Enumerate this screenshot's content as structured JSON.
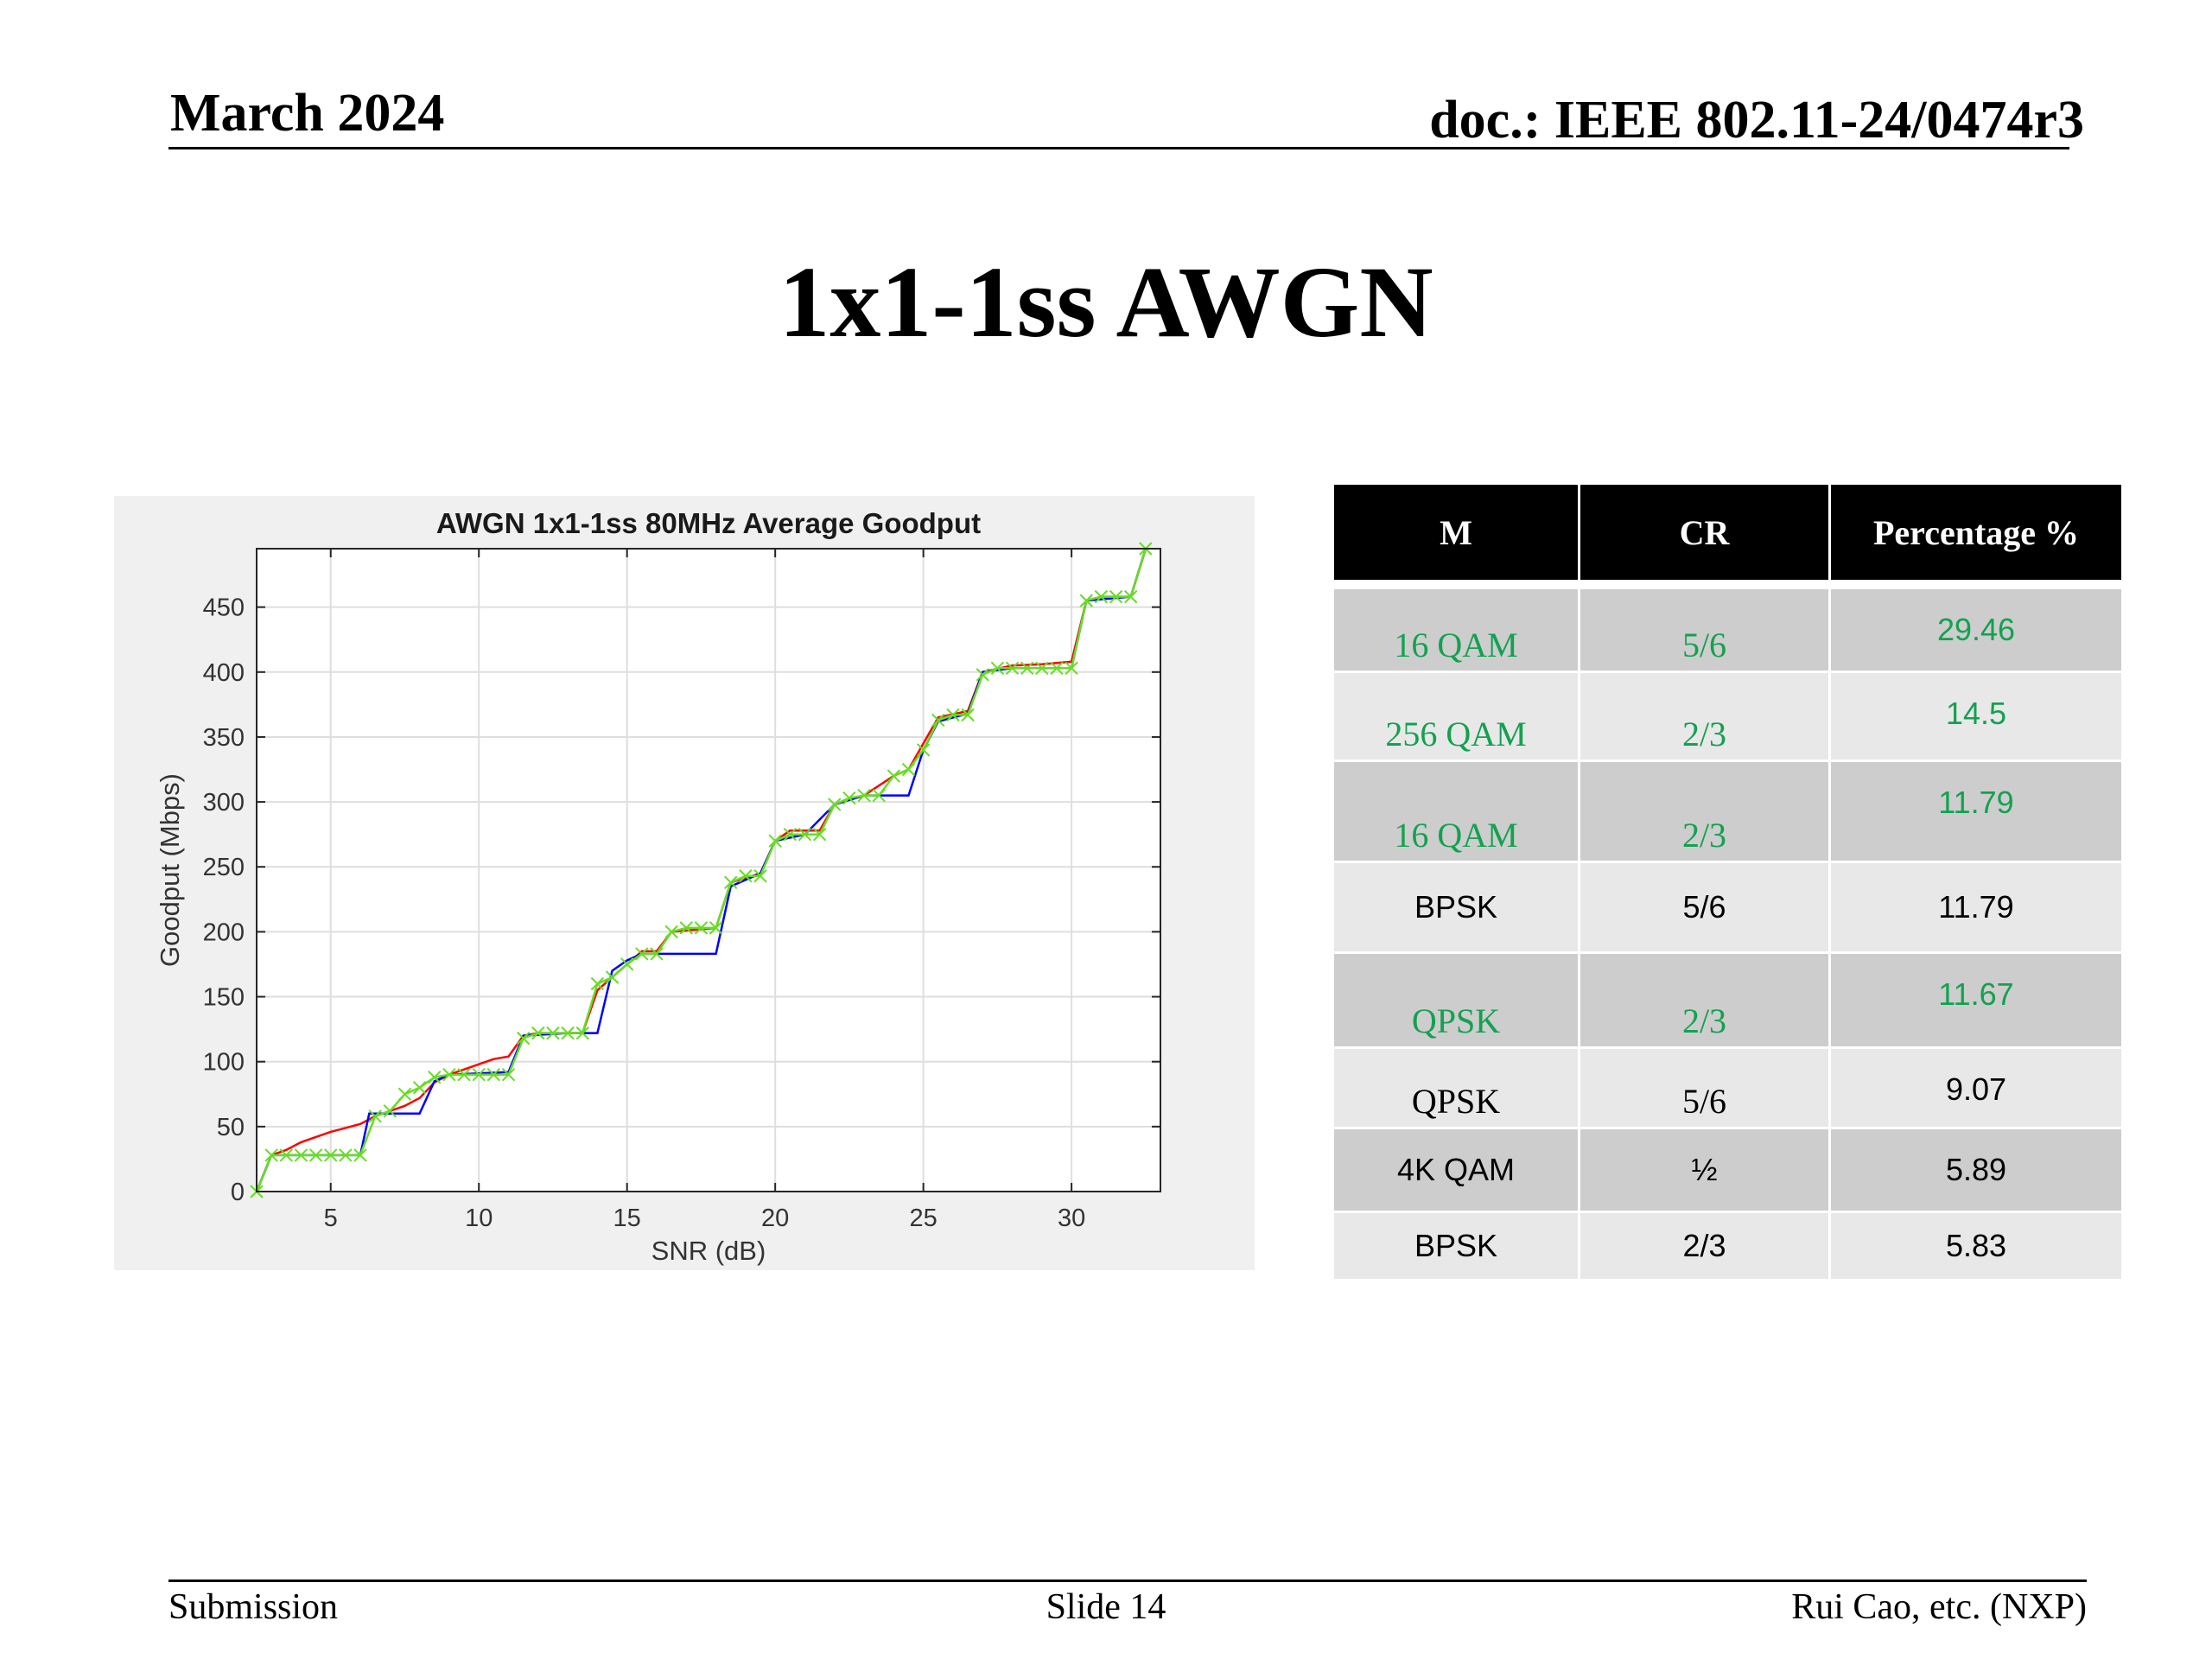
{
  "header": {
    "date": "March 2024",
    "doc": "doc.: IEEE 802.11-24/0474r3"
  },
  "slide_title": "1x1-1ss AWGN",
  "footer": {
    "left": "Submission",
    "center": "Slide 14",
    "right": "Rui Cao, etc. (NXP)"
  },
  "colors": {
    "green_text": "#13a150",
    "header_bg": "#000000",
    "row_dark": "#cdcdcd",
    "row_light": "#e8e8e8"
  },
  "chart_data": {
    "type": "line",
    "title": "AWGN 1x1-1ss 80MHz Average Goodput",
    "xlabel": "SNR (dB)",
    "ylabel": "Goodput (Mbps)",
    "xlim": [
      2.5,
      33
    ],
    "ylim": [
      0,
      495
    ],
    "xticks": [
      5,
      10,
      15,
      20,
      25,
      30
    ],
    "yticks": [
      0,
      50,
      100,
      150,
      200,
      250,
      300,
      350,
      400,
      450
    ],
    "grid": true,
    "series": [
      {
        "color": "#ff0000",
        "marker": "none",
        "points": [
          [
            2.5,
            0
          ],
          [
            3,
            28
          ],
          [
            3.5,
            32
          ],
          [
            4,
            38
          ],
          [
            4.5,
            42
          ],
          [
            5,
            46
          ],
          [
            5.5,
            49
          ],
          [
            6,
            52
          ],
          [
            6.5,
            58
          ],
          [
            7,
            62
          ],
          [
            7.5,
            66
          ],
          [
            8,
            72
          ],
          [
            8.5,
            84
          ],
          [
            9,
            90
          ],
          [
            9.5,
            94
          ],
          [
            10,
            98
          ],
          [
            10.5,
            102
          ],
          [
            11,
            104
          ],
          [
            11.5,
            120
          ],
          [
            12,
            122
          ],
          [
            13.5,
            122
          ],
          [
            14,
            155
          ],
          [
            14.5,
            165
          ],
          [
            15,
            175
          ],
          [
            15.5,
            185
          ],
          [
            16,
            185
          ],
          [
            16.5,
            200
          ],
          [
            18,
            203
          ],
          [
            18.5,
            238
          ],
          [
            19.5,
            245
          ],
          [
            20,
            270
          ],
          [
            20.5,
            278
          ],
          [
            21.5,
            278
          ],
          [
            22,
            298
          ],
          [
            23,
            305
          ],
          [
            24,
            320
          ],
          [
            24.5,
            325
          ],
          [
            25,
            345
          ],
          [
            25.5,
            365
          ],
          [
            26.5,
            370
          ],
          [
            27,
            400
          ],
          [
            28,
            405
          ],
          [
            29,
            406
          ],
          [
            30,
            408
          ],
          [
            30.5,
            455
          ],
          [
            31,
            458
          ],
          [
            32,
            458
          ],
          [
            32.5,
            495
          ]
        ]
      },
      {
        "color": "#0000ff",
        "marker": "none",
        "points": [
          [
            2.5,
            0
          ],
          [
            3,
            28
          ],
          [
            6,
            28
          ],
          [
            6.3,
            60
          ],
          [
            7,
            60
          ],
          [
            8,
            60
          ],
          [
            8.5,
            85
          ],
          [
            9,
            90
          ],
          [
            11,
            92
          ],
          [
            11.5,
            120
          ],
          [
            13,
            122
          ],
          [
            14,
            122
          ],
          [
            14.5,
            170
          ],
          [
            15,
            178
          ],
          [
            15.5,
            183
          ],
          [
            18,
            183
          ],
          [
            18.5,
            235
          ],
          [
            19.5,
            245
          ],
          [
            20,
            270
          ],
          [
            21,
            275
          ],
          [
            22,
            298
          ],
          [
            23,
            305
          ],
          [
            24.5,
            305
          ],
          [
            25,
            340
          ],
          [
            25.5,
            362
          ],
          [
            26.5,
            368
          ],
          [
            27,
            400
          ],
          [
            28,
            403
          ],
          [
            30,
            403
          ],
          [
            30.5,
            455
          ],
          [
            32,
            458
          ],
          [
            32.5,
            495
          ]
        ]
      },
      {
        "color": "#66dd22",
        "marker": "x",
        "points": [
          [
            2.5,
            0
          ],
          [
            3,
            28
          ],
          [
            3.5,
            28
          ],
          [
            4,
            28
          ],
          [
            4.5,
            28
          ],
          [
            5,
            28
          ],
          [
            5.5,
            28
          ],
          [
            6,
            28
          ],
          [
            6.5,
            58
          ],
          [
            7,
            62
          ],
          [
            7.5,
            75
          ],
          [
            8,
            80
          ],
          [
            8.5,
            88
          ],
          [
            9,
            90
          ],
          [
            9.5,
            90
          ],
          [
            10,
            90
          ],
          [
            10.5,
            90
          ],
          [
            11,
            90
          ],
          [
            11.5,
            118
          ],
          [
            12,
            122
          ],
          [
            12.5,
            122
          ],
          [
            13,
            122
          ],
          [
            13.5,
            122
          ],
          [
            14,
            160
          ],
          [
            14.5,
            165
          ],
          [
            15,
            175
          ],
          [
            15.5,
            183
          ],
          [
            16,
            183
          ],
          [
            16.5,
            200
          ],
          [
            17,
            203
          ],
          [
            17.5,
            203
          ],
          [
            18,
            203
          ],
          [
            18.5,
            238
          ],
          [
            19,
            243
          ],
          [
            19.5,
            243
          ],
          [
            20,
            270
          ],
          [
            20.5,
            275
          ],
          [
            21,
            275
          ],
          [
            21.5,
            275
          ],
          [
            22,
            298
          ],
          [
            22.5,
            303
          ],
          [
            23,
            305
          ],
          [
            23.5,
            305
          ],
          [
            24,
            320
          ],
          [
            24.5,
            325
          ],
          [
            25,
            340
          ],
          [
            25.5,
            363
          ],
          [
            26,
            367
          ],
          [
            26.5,
            367
          ],
          [
            27,
            398
          ],
          [
            27.5,
            403
          ],
          [
            28,
            403
          ],
          [
            28.5,
            403
          ],
          [
            29,
            403
          ],
          [
            29.5,
            403
          ],
          [
            30,
            403
          ],
          [
            30.5,
            455
          ],
          [
            31,
            458
          ],
          [
            31.5,
            458
          ],
          [
            32,
            458
          ],
          [
            32.5,
            495
          ]
        ]
      }
    ]
  },
  "table": {
    "columns": [
      "M",
      "CR",
      "Percentage %"
    ],
    "rows": [
      {
        "m": "16 QAM",
        "cr": "5/6",
        "pct": "29.46"
      },
      {
        "m": "256 QAM",
        "cr": "2/3",
        "pct": "14.5"
      },
      {
        "m": "16 QAM",
        "cr": "2/3",
        "pct": "11.79"
      },
      {
        "m": "BPSK",
        "cr": "5/6",
        "pct": "11.79"
      },
      {
        "m": "QPSK",
        "cr": "2/3",
        "pct": "11.67"
      },
      {
        "m": "QPSK",
        "cr": "5/6",
        "pct": "9.07"
      },
      {
        "m": "4K QAM",
        "cr": "½",
        "pct": "5.89"
      },
      {
        "m": "BPSK",
        "cr": "2/3",
        "pct": "5.83"
      }
    ]
  }
}
